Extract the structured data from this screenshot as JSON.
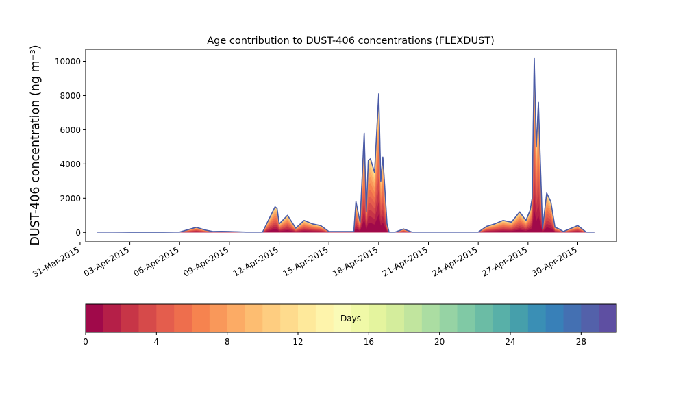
{
  "chart_data": {
    "type": "area",
    "title": "Age contribution to DUST-406 concentrations (FLEXDUST)",
    "xlabel": "",
    "ylabel": "DUST-406 concentration (ng m⁻³)",
    "xlim": [
      "2015-03-31T08:00",
      "2015-05-02T08:00"
    ],
    "ylim": [
      -550,
      10700
    ],
    "x_ticks": [
      "31-Mar-2015",
      "03-Apr-2015",
      "06-Apr-2015",
      "09-Apr-2015",
      "12-Apr-2015",
      "15-Apr-2015",
      "18-Apr-2015",
      "21-Apr-2015",
      "24-Apr-2015",
      "27-Apr-2015",
      "30-Apr-2015"
    ],
    "y_ticks": [
      0,
      2000,
      4000,
      6000,
      8000,
      10000
    ],
    "series": [
      {
        "x": [
          "2015-04-01T00:00",
          "2015-04-02T00:00",
          "2015-04-03T00:00",
          "2015-04-04T00:00",
          "2015-04-05T00:00",
          "2015-04-06T00:00",
          "2015-04-07T00:00",
          "2015-04-07T12:00",
          "2015-04-08T00:00",
          "2015-04-08T12:00",
          "2015-04-09T00:00",
          "2015-04-10T00:00",
          "2015-04-11T00:00",
          "2015-04-11T18:00",
          "2015-04-11T21:00",
          "2015-04-12T00:00",
          "2015-04-12T12:00",
          "2015-04-13T00:00",
          "2015-04-13T12:00",
          "2015-04-14T00:00",
          "2015-04-14T12:00",
          "2015-04-15T00:00",
          "2015-04-16T00:00",
          "2015-04-16T12:00",
          "2015-04-16T15:00",
          "2015-04-16T21:00",
          "2015-04-17T03:00",
          "2015-04-17T06:00",
          "2015-04-17T09:00",
          "2015-04-17T12:00",
          "2015-04-17T18:00",
          "2015-04-18T00:00",
          "2015-04-18T03:00",
          "2015-04-18T06:00",
          "2015-04-18T09:00",
          "2015-04-18T12:00",
          "2015-04-18T15:00",
          "2015-04-18T18:00",
          "2015-04-19T00:00",
          "2015-04-19T12:00",
          "2015-04-20T00:00",
          "2015-04-21T00:00",
          "2015-04-22T00:00",
          "2015-04-23T00:00",
          "2015-04-24T00:00",
          "2015-04-24T12:00",
          "2015-04-25T00:00",
          "2015-04-25T12:00",
          "2015-04-26T00:00",
          "2015-04-26T12:00",
          "2015-04-26T21:00",
          "2015-04-27T03:00",
          "2015-04-27T06:00",
          "2015-04-27T09:00",
          "2015-04-27T12:00",
          "2015-04-27T15:00",
          "2015-04-27T21:00",
          "2015-04-28T03:00",
          "2015-04-28T09:00",
          "2015-04-28T15:00",
          "2015-04-28T21:00",
          "2015-04-29T03:00",
          "2015-04-29T12:00",
          "2015-04-30T00:00",
          "2015-04-30T12:00",
          "2015-05-01T00:00"
        ],
        "y": [
          20,
          20,
          10,
          10,
          10,
          20,
          300,
          150,
          50,
          60,
          50,
          20,
          20,
          1500,
          1400,
          500,
          1000,
          250,
          700,
          500,
          400,
          50,
          50,
          50,
          1800,
          600,
          5800,
          1200,
          4200,
          4300,
          3500,
          8100,
          3000,
          4400,
          2500,
          500,
          20,
          20,
          20,
          200,
          20,
          20,
          20,
          20,
          20,
          350,
          500,
          700,
          600,
          1200,
          700,
          1300,
          2000,
          10200,
          5000,
          7600,
          200,
          2300,
          1800,
          300,
          200,
          50,
          200,
          400,
          20,
          20
        ]
      }
    ],
    "colorbar": {
      "label": "Days",
      "range": [
        0,
        30
      ],
      "ticks": [
        0,
        4,
        8,
        12,
        16,
        20,
        24,
        28
      ],
      "colors": [
        "#a0094a",
        "#b51f48",
        "#c73547",
        "#d64a4a",
        "#e45d4d",
        "#ee6e4d",
        "#f6834f",
        "#f9985a",
        "#fcab65",
        "#fdbd71",
        "#fecd80",
        "#fedb8d",
        "#fee99b",
        "#fef4ab",
        "#fafbb7",
        "#f0f9a7",
        "#e4f49e",
        "#d4ed9c",
        "#c1e59e",
        "#abdda2",
        "#96d3a4",
        "#80c9a5",
        "#6bbca5",
        "#58b0a8",
        "#469fab",
        "#3a8fb5",
        "#3880b8",
        "#4470b2",
        "#5361aa",
        "#5e4fa2"
      ]
    }
  }
}
